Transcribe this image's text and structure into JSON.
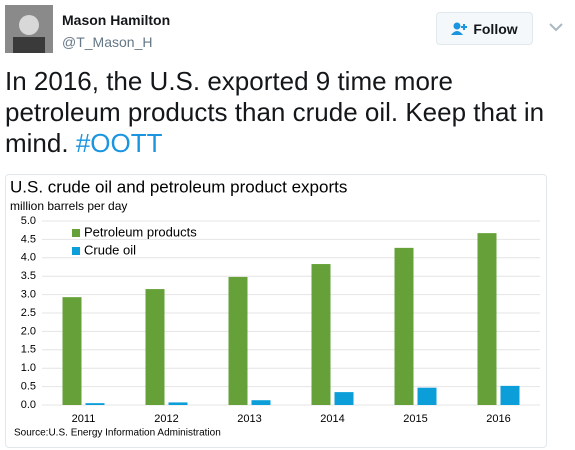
{
  "tweet": {
    "name": "Mason Hamilton",
    "handle": "@T_Mason_H",
    "follow": "Follow",
    "text": "In 2016, the U.S. exported 9 time more petroleum products than crude oil. Keep that in mind.",
    "hashtag": "#OOTT"
  },
  "chart_data": {
    "type": "bar",
    "title": "U.S. crude oil and petroleum product exports",
    "subtitle": "million barrels per day",
    "source": "Source:U.S. Energy Information Administration",
    "categories": [
      "2011",
      "2012",
      "2013",
      "2014",
      "2015",
      "2016"
    ],
    "series": [
      {
        "name": "Petroleum products",
        "color": "#66a038",
        "values": [
          2.93,
          3.15,
          3.48,
          3.83,
          4.27,
          4.67
        ]
      },
      {
        "name": "Crude oil",
        "color": "#0b9ed8",
        "values": [
          0.05,
          0.07,
          0.13,
          0.35,
          0.47,
          0.52
        ]
      }
    ],
    "ylim": [
      0,
      5
    ],
    "yticks": [
      {
        "value": 0,
        "label": "0.0"
      },
      {
        "value": 0.5,
        "label": "0.5"
      },
      {
        "value": 1,
        "label": "1.0"
      },
      {
        "value": 1.5,
        "label": "1.5"
      },
      {
        "value": 2,
        "label": "2.0"
      },
      {
        "value": 2.5,
        "label": "2.5"
      },
      {
        "value": 3,
        "label": "3.0"
      },
      {
        "value": 3.5,
        "label": "3.5"
      },
      {
        "value": 4,
        "label": "4.0"
      },
      {
        "value": 4.5,
        "label": "4.5"
      },
      {
        "value": 5,
        "label": "5.0"
      }
    ],
    "grid": true
  }
}
